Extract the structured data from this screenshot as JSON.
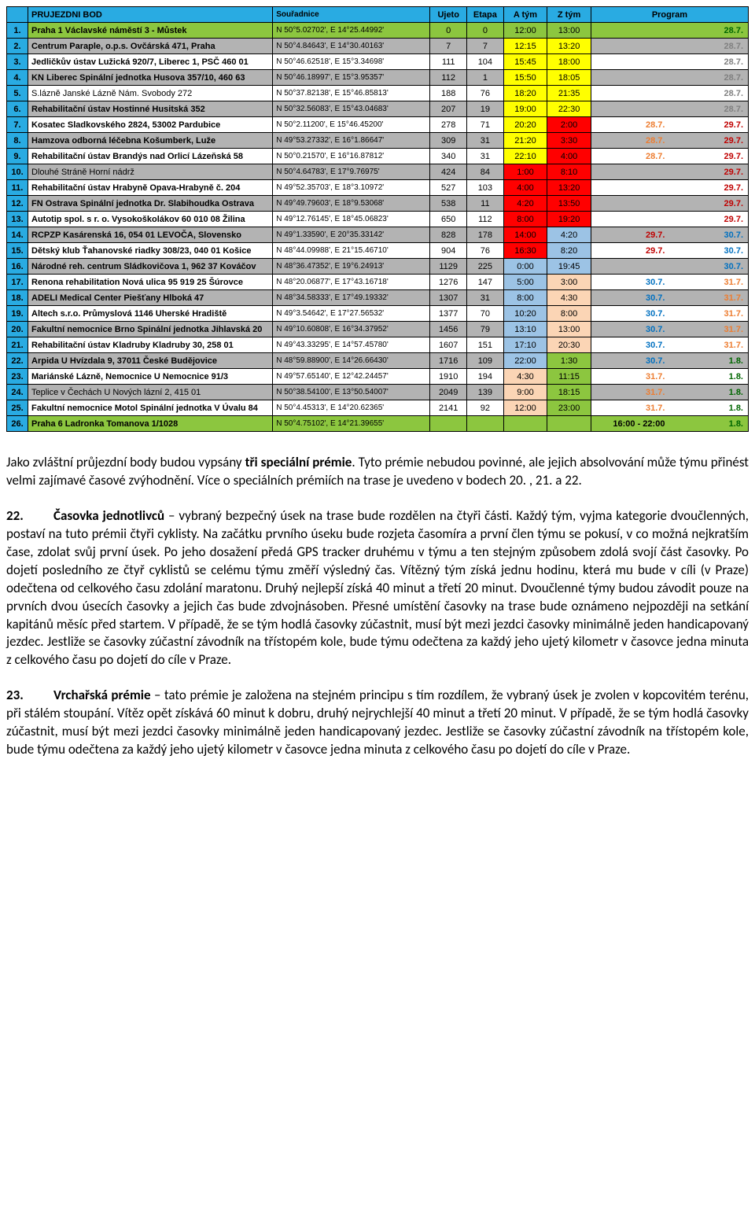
{
  "colors": {
    "header_bg": "#29abe2",
    "green_bg": "#8cc63f",
    "grey_bg": "#b3b3b3",
    "yellow": "#ffff00",
    "red": "#ff0000",
    "blue_cell": "#9cc3e5",
    "peach": "#fbd5b5",
    "dark_green_text": "#006600",
    "red_text": "#c00000",
    "orange_text": "#ed7d31",
    "blue_text": "#0070c0",
    "light_grey_text": "#808080"
  },
  "headers": {
    "num": "",
    "name": "PRUJEZDNI BOD",
    "coord": "Souřadnice",
    "ujeto": "Ujeto",
    "etapa": "Etapa",
    "atym": "A tým",
    "ztym": "Z tým",
    "prog": "Program"
  },
  "rows": [
    {
      "n": "1.",
      "name": "Praha 1 Václavské náměstí 3 - Můstek",
      "coord": "N 50°5.02702', E 14°25.44992'",
      "ujeto": "0",
      "etapa": "0",
      "atym": "12:00",
      "ztym": "13:00",
      "atym_bg": "green_bg",
      "ztym_bg": "green_bg",
      "row_bg": "green_bg",
      "name_bold": true,
      "pl": "",
      "pr": "28.7.",
      "pl_c": "",
      "pr_c": "dark_green_text"
    },
    {
      "n": "2.",
      "name": "Centrum Paraple, o.p.s. Ovčárská 471, Praha",
      "coord": "N 50°4.84643', E 14°30.40163'",
      "ujeto": "7",
      "etapa": "7",
      "atym": "12:15",
      "ztym": "13:20",
      "atym_bg": "yellow",
      "ztym_bg": "yellow",
      "row_bg": "grey_bg",
      "name_bold": true,
      "pl": "",
      "pr": "28.7.",
      "pl_c": "",
      "pr_c": "light_grey_text"
    },
    {
      "n": "3.",
      "name": "Jedličkův ústav Lužická 920/7, Liberec 1, PSČ 460 01",
      "coord": "N 50°46.62518', E 15°3.34698'",
      "ujeto": "111",
      "etapa": "104",
      "atym": "15:45",
      "ztym": "18:00",
      "atym_bg": "yellow",
      "ztym_bg": "yellow",
      "row_bg": "",
      "name_bold": true,
      "pl": "",
      "pr": "28.7.",
      "pl_c": "",
      "pr_c": "light_grey_text"
    },
    {
      "n": "4.",
      "name": "KN Liberec Spinální jednotka Husova 357/10, 460 63",
      "coord": "N 50°46.18997', E 15°3.95357'",
      "ujeto": "112",
      "etapa": "1",
      "atym": "15:50",
      "ztym": "18:05",
      "atym_bg": "yellow",
      "ztym_bg": "yellow",
      "row_bg": "grey_bg",
      "name_bold": true,
      "pl": "",
      "pr": "28.7.",
      "pl_c": "",
      "pr_c": "light_grey_text"
    },
    {
      "n": "5.",
      "name": "S.lázně Janské Lázně Nám. Svobody 272",
      "coord": "N 50°37.82138', E 15°46.85813'",
      "ujeto": "188",
      "etapa": "76",
      "atym": "18:20",
      "ztym": "21:35",
      "atym_bg": "yellow",
      "ztym_bg": "yellow",
      "row_bg": "",
      "name_bold": false,
      "pl": "",
      "pr": "28.7.",
      "pl_c": "",
      "pr_c": "light_grey_text"
    },
    {
      "n": "6.",
      "name": "Rehabilitační ústav Hostinné Husitská 352",
      "coord": "N 50°32.56083', E 15°43.04683'",
      "ujeto": "207",
      "etapa": "19",
      "atym": "19:00",
      "ztym": "22:30",
      "atym_bg": "yellow",
      "ztym_bg": "yellow",
      "row_bg": "grey_bg",
      "name_bold": true,
      "pl": "",
      "pr": "28.7.",
      "pl_c": "",
      "pr_c": "light_grey_text"
    },
    {
      "n": "7.",
      "name": "Kosatec Sladkovského 2824, 53002 Pardubice",
      "coord": "N 50°2.11200', E 15°46.45200'",
      "ujeto": "278",
      "etapa": "71",
      "atym": "20:20",
      "ztym": "2:00",
      "atym_bg": "yellow",
      "ztym_bg": "red",
      "row_bg": "",
      "name_bold": true,
      "pl": "28.7.",
      "pr": "29.7.",
      "pl_c": "orange_text",
      "pr_c": "red_text"
    },
    {
      "n": "8.",
      "name": "Hamzova odborná léčebna Košumberk, Luže",
      "coord": "N 49°53.27332', E 16°1.86647'",
      "ujeto": "309",
      "etapa": "31",
      "atym": "21:20",
      "ztym": "3:30",
      "atym_bg": "yellow",
      "ztym_bg": "red",
      "row_bg": "grey_bg",
      "name_bold": true,
      "pl": "28.7.",
      "pr": "29.7.",
      "pl_c": "orange_text",
      "pr_c": "red_text"
    },
    {
      "n": "9.",
      "name": "Rehabilitační ústav Brandýs nad Orlicí Lázeňská 58",
      "coord": "N 50°0.21570', E 16°16.87812'",
      "ujeto": "340",
      "etapa": "31",
      "atym": "22:10",
      "ztym": "4:00",
      "atym_bg": "yellow",
      "ztym_bg": "red",
      "row_bg": "",
      "name_bold": true,
      "pl": "28.7.",
      "pr": "29.7.",
      "pl_c": "orange_text",
      "pr_c": "red_text"
    },
    {
      "n": "10.",
      "name": "Dlouhé Stráně Horní nádrž",
      "coord": "N 50°4.64783', E 17°9.76975'",
      "ujeto": "424",
      "etapa": "84",
      "atym": "1:00",
      "ztym": "8:10",
      "atym_bg": "red",
      "ztym_bg": "red",
      "row_bg": "grey_bg",
      "name_bold": false,
      "pl": "",
      "pr": "29.7.",
      "pl_c": "",
      "pr_c": "red_text"
    },
    {
      "n": "11.",
      "name": "Rehabilitační ústav Hrabyně Opava-Hrabyně č. 204",
      "coord": "N 49°52.35703', E 18°3.10972'",
      "ujeto": "527",
      "etapa": "103",
      "atym": "4:00",
      "ztym": "13:20",
      "atym_bg": "red",
      "ztym_bg": "red",
      "row_bg": "",
      "name_bold": true,
      "pl": "",
      "pr": "29.7.",
      "pl_c": "",
      "pr_c": "red_text"
    },
    {
      "n": "12.",
      "name": "FN Ostrava Spinální jednotka Dr. Slabihoudka Ostrava",
      "coord": "N 49°49.79603', E 18°9.53068'",
      "ujeto": "538",
      "etapa": "11",
      "atym": "4:20",
      "ztym": "13:50",
      "atym_bg": "red",
      "ztym_bg": "red",
      "row_bg": "grey_bg",
      "name_bold": true,
      "pl": "",
      "pr": "29.7.",
      "pl_c": "",
      "pr_c": "red_text"
    },
    {
      "n": "13.",
      "name": "Autotip spol. s r. o. Vysokoškolákov 60 010 08 Žilina",
      "coord": "N 49°12.76145', E 18°45.06823'",
      "ujeto": "650",
      "etapa": "112",
      "atym": "8:00",
      "ztym": "19:20",
      "atym_bg": "red",
      "ztym_bg": "red",
      "row_bg": "",
      "name_bold": true,
      "pl": "",
      "pr": "29.7.",
      "pl_c": "",
      "pr_c": "red_text"
    },
    {
      "n": "14.",
      "name": "RCPZP Kasárenská 16, 054 01 LEVOČA, Slovensko",
      "coord": "N 49°1.33590', E 20°35.33142'",
      "ujeto": "828",
      "etapa": "178",
      "atym": "14:00",
      "ztym": "4:20",
      "atym_bg": "red",
      "ztym_bg": "blue_cell",
      "row_bg": "grey_bg",
      "name_bold": true,
      "pl": "29.7.",
      "pr": "30.7.",
      "pl_c": "red_text",
      "pr_c": "blue_text"
    },
    {
      "n": "15.",
      "name": "Dětský klub Ťahanovské riadky 308/23, 040 01 Košice",
      "coord": "N 48°44.09988', E 21°15.46710'",
      "ujeto": "904",
      "etapa": "76",
      "atym": "16:30",
      "ztym": "8:20",
      "atym_bg": "red",
      "ztym_bg": "blue_cell",
      "row_bg": "",
      "name_bold": true,
      "pl": "29.7.",
      "pr": "30.7.",
      "pl_c": "red_text",
      "pr_c": "blue_text"
    },
    {
      "n": "16.",
      "name": "Národné reh. centrum Sládkovičova 1, 962 37 Kováčov",
      "coord": "N 48°36.47352', E 19°6.24913'",
      "ujeto": "1129",
      "etapa": "225",
      "atym": "0:00",
      "ztym": "19:45",
      "atym_bg": "blue_cell",
      "ztym_bg": "blue_cell",
      "row_bg": "grey_bg",
      "name_bold": true,
      "pl": "",
      "pr": "30.7.",
      "pl_c": "",
      "pr_c": "blue_text"
    },
    {
      "n": "17.",
      "name": "Renona rehabilitation Nová ulica 95  919 25 Šúrovce",
      "coord": "N 48°20.06877', E 17°43.16718'",
      "ujeto": "1276",
      "etapa": "147",
      "atym": "5:00",
      "ztym": "3:00",
      "atym_bg": "blue_cell",
      "ztym_bg": "peach",
      "row_bg": "",
      "name_bold": true,
      "pl": "30.7.",
      "pr": "31.7.",
      "pl_c": "blue_text",
      "pr_c": "orange_text"
    },
    {
      "n": "18.",
      "name": "ADELI Medical Center Piešťany Hlboká 47",
      "coord": "N 48°34.58333', E 17°49.19332'",
      "ujeto": "1307",
      "etapa": "31",
      "atym": "8:00",
      "ztym": "4:30",
      "atym_bg": "blue_cell",
      "ztym_bg": "peach",
      "row_bg": "grey_bg",
      "name_bold": true,
      "pl": "30.7.",
      "pr": "31.7.",
      "pl_c": "blue_text",
      "pr_c": "orange_text"
    },
    {
      "n": "19.",
      "name": "Altech s.r.o. Průmyslová 1146 Uherské Hradiště",
      "coord": "N 49°3.54642', E 17°27.56532'",
      "ujeto": "1377",
      "etapa": "70",
      "atym": "10:20",
      "ztym": "8:00",
      "atym_bg": "blue_cell",
      "ztym_bg": "peach",
      "row_bg": "",
      "name_bold": true,
      "pl": "30.7.",
      "pr": "31.7.",
      "pl_c": "blue_text",
      "pr_c": "orange_text"
    },
    {
      "n": "20.",
      "name": "Fakultní nemocnice Brno Spinální jednotka Jihlavská 20",
      "coord": "N 49°10.60808', E 16°34.37952'",
      "ujeto": "1456",
      "etapa": "79",
      "atym": "13:10",
      "ztym": "13:00",
      "atym_bg": "blue_cell",
      "ztym_bg": "peach",
      "row_bg": "grey_bg",
      "name_bold": true,
      "pl": "30.7.",
      "pr": "31.7.",
      "pl_c": "blue_text",
      "pr_c": "orange_text"
    },
    {
      "n": "21.",
      "name": "Rehabilitační ústav Kladruby Kladruby 30, 258 01",
      "coord": "N 49°43.33295', E 14°57.45780'",
      "ujeto": "1607",
      "etapa": "151",
      "atym": "17:10",
      "ztym": "20:30",
      "atym_bg": "blue_cell",
      "ztym_bg": "peach",
      "row_bg": "",
      "name_bold": true,
      "pl": "30.7.",
      "pr": "31.7.",
      "pl_c": "blue_text",
      "pr_c": "orange_text"
    },
    {
      "n": "22.",
      "name": "Arpida U Hvízdala 9, 37011 České Budějovice",
      "coord": "N 48°59.88900', E 14°26.66430'",
      "ujeto": "1716",
      "etapa": "109",
      "atym": "22:00",
      "ztym": "1:30",
      "atym_bg": "blue_cell",
      "ztym_bg": "green_bg",
      "row_bg": "grey_bg",
      "name_bold": true,
      "pl": "30.7.",
      "pr": "1.8.",
      "pl_c": "blue_text",
      "pr_c": "dark_green_text"
    },
    {
      "n": "23.",
      "name": "Mariánské Lázně, Nemocnice U Nemocnice 91/3",
      "coord": "N 49°57.65140', E 12°42.24457'",
      "ujeto": "1910",
      "etapa": "194",
      "atym": "4:30",
      "ztym": "11:15",
      "atym_bg": "peach",
      "ztym_bg": "green_bg",
      "row_bg": "",
      "name_bold": true,
      "pl": "31.7.",
      "pr": "1.8.",
      "pl_c": "orange_text",
      "pr_c": "dark_green_text"
    },
    {
      "n": "24.",
      "name": "Teplice v Čechách U Nových lázní 2, 415 01",
      "coord": "N 50°38.54100', E 13°50.54007'",
      "ujeto": "2049",
      "etapa": "139",
      "atym": "9:00",
      "ztym": "18:15",
      "atym_bg": "peach",
      "ztym_bg": "green_bg",
      "row_bg": "grey_bg",
      "name_bold": false,
      "pl": "31.7.",
      "pr": "1.8.",
      "pl_c": "orange_text",
      "pr_c": "dark_green_text"
    },
    {
      "n": "25.",
      "name": "Fakultní nemocnice Motol Spinální jednotka V Úvalu 84",
      "coord": "N 50°4.45313', E 14°20.62365'",
      "ujeto": "2141",
      "etapa": "92",
      "atym": "12:00",
      "ztym": "23:00",
      "atym_bg": "peach",
      "ztym_bg": "green_bg",
      "row_bg": "",
      "name_bold": true,
      "pl": "31.7.",
      "pr": "1.8.",
      "pl_c": "orange_text",
      "pr_c": "dark_green_text"
    },
    {
      "n": "26.",
      "name": "Praha 6 Ladronka Tomanova 1/1028",
      "coord": "N 50°4.75102', E 14°21.39655'",
      "ujeto": "",
      "etapa": "",
      "atym": "",
      "ztym": "",
      "atym_bg": "green_bg",
      "ztym_bg": "green_bg",
      "row_bg": "green_bg",
      "name_bold": true,
      "pl": "16:00 - 22:00",
      "pr": "1.8.",
      "pl_c": "",
      "pr_c": "dark_green_text"
    }
  ],
  "paragraphs": {
    "p1": "Jako zvláštní průjezdní body budou vypsány tři speciální prémie. Tyto prémie nebudou povinné, ale jejich absolvování může týmu přinést velmi zajímavé časové zvýhodnění. Více o speciálních prémiích na trase je uvedeno v bodech 20. , 21. a 22.",
    "p1_bold_span": "tři speciální prémie",
    "p2_num": "22.",
    "p2_title": "Časovka jednotlivců",
    "p2_body": " – vybraný bezpečný úsek na trase bude rozdělen na čtyři části. Každý tým, vyjma kategorie dvoučlenných, postaví na tuto prémii čtyři cyklisty. Na začátku prvního úseku bude rozjeta časomíra a první člen týmu se pokusí, v co možná nejkratším čase, zdolat svůj první úsek. Po jeho dosažení předá GPS tracker druhému v týmu a ten stejným způsobem zdolá svojí část časovky. Po dojetí posledního ze čtyř cyklistů se celému týmu změří výsledný čas. Vítězný tým získá jednu hodinu, která mu bude v cíli (v Praze) odečtena od celkového času zdolání maratonu. Druhý nejlepší získá 40 minut a třetí 20 minut. Dvoučlenné týmy budou závodit pouze na prvních dvou úsecích časovky a jejich čas bude zdvojnásoben. Přesné umístění časovky na trase bude oznámeno nejpozději na setkání kapitánů měsíc před startem. V případě, že se tým hodlá časovky zúčastnit, musí být mezi jezdci časovky minimálně jeden handicapovaný jezdec. Jestliže se časovky zúčastní závodník na třístopém kole, bude týmu odečtena za každý jeho ujetý kilometr v časovce jedna minuta z celkového času po dojetí do cíle v Praze.",
    "p3_num": "23.",
    "p3_title": "Vrchařská prémie",
    "p3_body": " – tato prémie je založena na stejném principu s tím rozdílem, že vybraný úsek je zvolen v kopcovitém terénu, při stálém stoupání. Vítěz opět získává 60 minut k dobru, druhý nejrychlejší 40 minut a třetí 20 minut. V případě, že se tým hodlá časovky zúčastnit, musí být mezi jezdci časovky minimálně jeden handicapovaný jezdec. Jestliže se časovky zúčastní závodník na třístopém kole, bude týmu odečtena za každý jeho ujetý kilometr v časovce jedna minuta z celkového času po dojetí do cíle v Praze."
  }
}
